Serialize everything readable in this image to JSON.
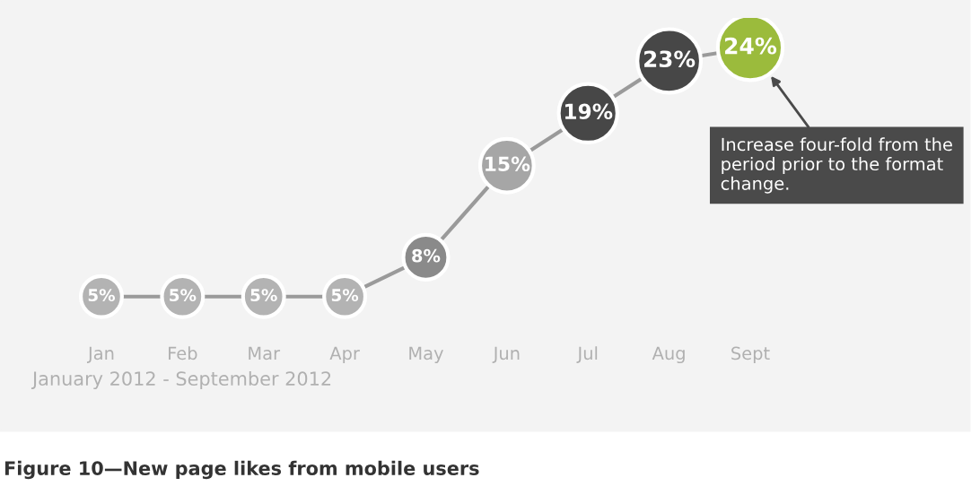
{
  "chart_data": {
    "type": "line",
    "title": "Figure 10—New page likes from mobile users",
    "categories": [
      "Jan",
      "Feb",
      "Mar",
      "Apr",
      "May",
      "Jun",
      "Jul",
      "Aug",
      "Sept"
    ],
    "series": [
      {
        "color": "#9a9a9a",
        "values": [
          5,
          5,
          5,
          5,
          8,
          15,
          19,
          23,
          24
        ],
        "colors": [
          "#b3b3b3",
          "#b3b3b3",
          "#b3b3b3",
          "#b3b3b3",
          "#8a8a8a",
          "#a6a6a6",
          "#474747",
          "#474747",
          "#9bbb3c"
        ],
        "value_labels": [
          "5%",
          "5%",
          "5%",
          "5%",
          "8%",
          "15%",
          "19%",
          "23%",
          "24%"
        ]
      }
    ],
    "marker": "circle",
    "tick_labels": "x",
    "grid": false,
    "annotations": [
      "Increase four-fold from the period prior to the format change.",
      "January 2012 - September 2012"
    ]
  }
}
